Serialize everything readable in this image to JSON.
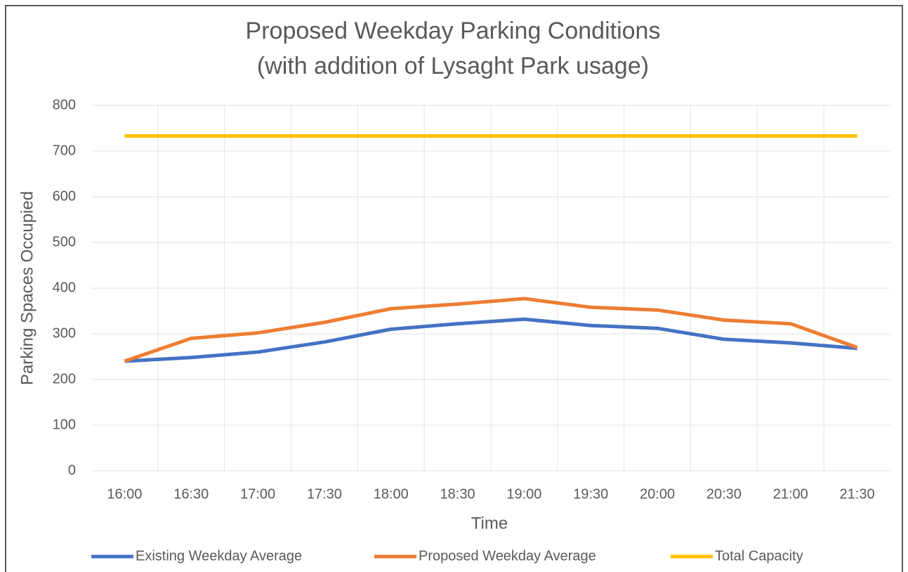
{
  "chart_data": {
    "type": "line",
    "title": [
      "Proposed Weekday Parking Conditions",
      "(with addition of Lysaght Park usage)"
    ],
    "x_label": "Time",
    "y_label": "Parking Spaces Occupied",
    "categories": [
      "16:00",
      "16:30",
      "17:00",
      "17:30",
      "18:00",
      "18:30",
      "19:00",
      "19:30",
      "20:00",
      "20:30",
      "21:00",
      "21:30"
    ],
    "series": [
      {
        "name": "Existing Weekday Average",
        "color": "#4472c4",
        "values": [
          240,
          248,
          260,
          282,
          310,
          322,
          332,
          318,
          312,
          288,
          280,
          268
        ]
      },
      {
        "name": "Proposed Weekday Average",
        "color": "#ed7d31",
        "values": [
          240,
          290,
          302,
          325,
          355,
          365,
          377,
          358,
          352,
          330,
          322,
          270
        ]
      },
      {
        "name": "Total Capacity",
        "color": "#ffc000",
        "values": [
          733,
          733,
          733,
          733,
          733,
          733,
          733,
          733,
          733,
          733,
          733,
          733
        ]
      }
    ],
    "ylim": [
      0,
      800
    ],
    "yticks": [
      0,
      100,
      200,
      300,
      400,
      500,
      600,
      700,
      800
    ],
    "grid": true,
    "legend": "bottom"
  }
}
